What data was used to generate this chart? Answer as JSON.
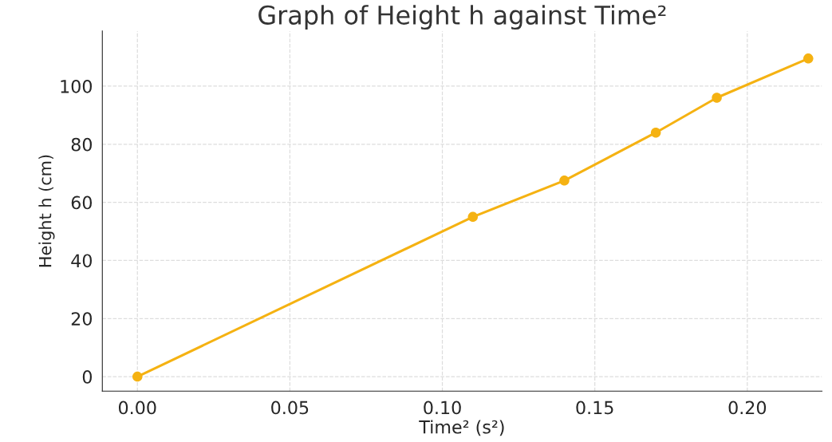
{
  "chart_data": {
    "type": "line",
    "title": "Graph of Height h against Time²",
    "xlabel": "Time² (s²)",
    "ylabel": "Height h (cm)",
    "x": [
      0,
      0.11,
      0.14,
      0.17,
      0.19,
      0.22
    ],
    "series": [
      {
        "color": "#f5b212",
        "values": [
          0,
          55,
          67.5,
          84,
          96,
          109.5
        ]
      }
    ],
    "xlim": [
      -0.0115,
      0.2245
    ],
    "ylim": [
      -5,
      119
    ],
    "xticks": [
      {
        "value": 0,
        "label": "0.00"
      },
      {
        "value": 0.05,
        "label": "0.05"
      },
      {
        "value": 0.1,
        "label": "0.10"
      },
      {
        "value": 0.15,
        "label": "0.15"
      },
      {
        "value": 0.2,
        "label": "0.20"
      }
    ],
    "yticks": [
      0,
      20,
      40,
      60,
      80,
      100
    ],
    "grid": true,
    "marker": "circle",
    "line_style": "solid"
  }
}
